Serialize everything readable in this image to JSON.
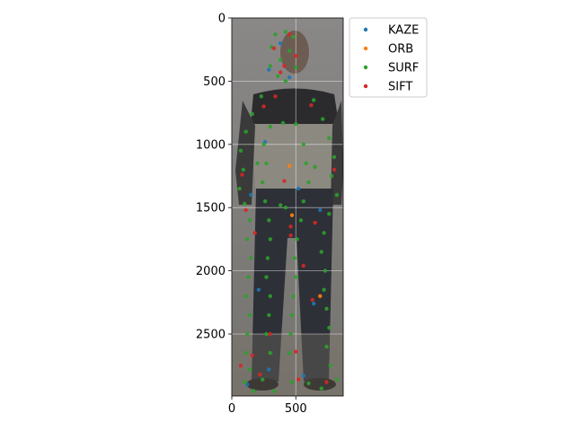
{
  "chart_data": {
    "type": "scatter",
    "title": "",
    "xlabel": "",
    "ylabel": "",
    "xlim": [
      0,
      870
    ],
    "ylim": [
      2990,
      0
    ],
    "y_inverted": true,
    "x_ticks": [
      0,
      500
    ],
    "y_ticks": [
      0,
      500,
      1000,
      1500,
      2000,
      2500
    ],
    "grid": true,
    "background": "photograph of a standing person (grayscale, muted tones)",
    "legend_position": "upper-right, outside plot area",
    "series": [
      {
        "name": "KAZE",
        "color": "#1f77b4",
        "points": [
          [
            380,
            200
          ],
          [
            290,
            410
          ],
          [
            450,
            470
          ],
          [
            260,
            980
          ],
          [
            520,
            1350
          ],
          [
            150,
            1400
          ],
          [
            690,
            1520
          ],
          [
            210,
            2150
          ],
          [
            640,
            2260
          ],
          [
            290,
            2780
          ],
          [
            560,
            2830
          ],
          [
            120,
            2900
          ]
        ]
      },
      {
        "name": "ORB",
        "color": "#ff7f0e",
        "points": [
          [
            450,
            1170
          ],
          [
            470,
            1560
          ],
          [
            690,
            2200
          ]
        ]
      },
      {
        "name": "SURF",
        "color": "#2ca02c",
        "points": [
          [
            340,
            130
          ],
          [
            420,
            110
          ],
          [
            480,
            150
          ],
          [
            310,
            230
          ],
          [
            450,
            260
          ],
          [
            380,
            330
          ],
          [
            300,
            380
          ],
          [
            500,
            390
          ],
          [
            360,
            460
          ],
          [
            420,
            500
          ],
          [
            230,
            620
          ],
          [
            160,
            760
          ],
          [
            110,
            900
          ],
          [
            70,
            1050
          ],
          [
            90,
            1200
          ],
          [
            60,
            1350
          ],
          [
            100,
            1470
          ],
          [
            140,
            1600
          ],
          [
            120,
            1750
          ],
          [
            150,
            1900
          ],
          [
            130,
            2050
          ],
          [
            110,
            2200
          ],
          [
            140,
            2350
          ],
          [
            120,
            2500
          ],
          [
            110,
            2650
          ],
          [
            140,
            2780
          ],
          [
            100,
            2880
          ],
          [
            170,
            2950
          ],
          [
            250,
            1000
          ],
          [
            270,
            1150
          ],
          [
            240,
            1300
          ],
          [
            260,
            1450
          ],
          [
            290,
            1600
          ],
          [
            300,
            1750
          ],
          [
            280,
            1900
          ],
          [
            270,
            2050
          ],
          [
            300,
            2200
          ],
          [
            290,
            2350
          ],
          [
            270,
            2500
          ],
          [
            300,
            2650
          ],
          [
            640,
            650
          ],
          [
            710,
            800
          ],
          [
            760,
            950
          ],
          [
            800,
            1100
          ],
          [
            780,
            1250
          ],
          [
            820,
            1400
          ],
          [
            760,
            1550
          ],
          [
            720,
            1700
          ],
          [
            700,
            1850
          ],
          [
            730,
            2000
          ],
          [
            720,
            2150
          ],
          [
            740,
            2300
          ],
          [
            760,
            2450
          ],
          [
            740,
            2600
          ],
          [
            770,
            2750
          ],
          [
            820,
            2860
          ],
          [
            700,
            2930
          ],
          [
            600,
            2890
          ],
          [
            560,
            1000
          ],
          [
            580,
            1150
          ],
          [
            600,
            1300
          ],
          [
            560,
            1450
          ],
          [
            540,
            1600
          ],
          [
            510,
            1750
          ],
          [
            490,
            1900
          ],
          [
            500,
            2050
          ],
          [
            480,
            2200
          ],
          [
            470,
            2350
          ],
          [
            460,
            2500
          ],
          [
            450,
            2650
          ],
          [
            400,
            830
          ],
          [
            300,
            860
          ],
          [
            500,
            840
          ],
          [
            200,
            1150
          ],
          [
            650,
            1180
          ],
          [
            380,
            1480
          ],
          [
            420,
            1500
          ],
          [
            330,
            2950
          ],
          [
            470,
            2880
          ],
          [
            240,
            2860
          ]
        ]
      },
      {
        "name": "SIFT",
        "color": "#d62728",
        "points": [
          [
            450,
            130
          ],
          [
            330,
            240
          ],
          [
            410,
            380
          ],
          [
            500,
            300
          ],
          [
            380,
            430
          ],
          [
            250,
            700
          ],
          [
            620,
            690
          ],
          [
            80,
            1240
          ],
          [
            800,
            1200
          ],
          [
            110,
            1520
          ],
          [
            460,
            1650
          ],
          [
            460,
            1720
          ],
          [
            650,
            1620
          ],
          [
            180,
            1700
          ],
          [
            630,
            2230
          ],
          [
            70,
            2750
          ],
          [
            500,
            2640
          ],
          [
            520,
            2860
          ],
          [
            160,
            2670
          ],
          [
            740,
            2880
          ],
          [
            300,
            2500
          ],
          [
            560,
            1960
          ],
          [
            220,
            2820
          ],
          [
            410,
            1290
          ],
          [
            340,
            620
          ]
        ]
      }
    ]
  },
  "legend": {
    "items": [
      {
        "label": "KAZE",
        "color": "#1f77b4"
      },
      {
        "label": "ORB",
        "color": "#ff7f0e"
      },
      {
        "label": "SURF",
        "color": "#2ca02c"
      },
      {
        "label": "SIFT",
        "color": "#d62728"
      }
    ]
  }
}
